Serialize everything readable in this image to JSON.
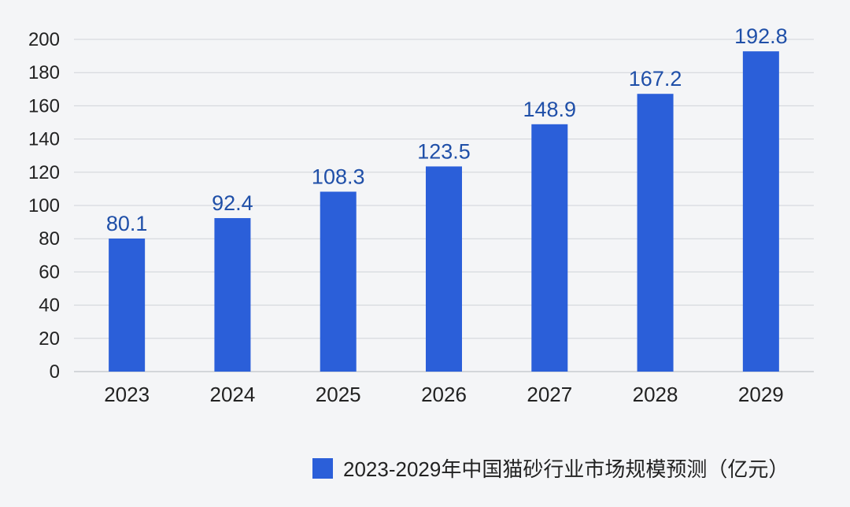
{
  "chart_data": {
    "type": "bar",
    "title": "",
    "xlabel": "",
    "ylabel": "",
    "categories": [
      "2023",
      "2024",
      "2025",
      "2026",
      "2027",
      "2028",
      "2029"
    ],
    "series": [
      {
        "name": "2023-2029年中国猫砂行业市场规模预测（亿元）",
        "values": [
          80.1,
          92.4,
          108.3,
          123.5,
          148.9,
          167.2,
          192.8
        ],
        "labels": [
          "80.1",
          "92.4",
          "108.3",
          "123.5",
          "148.9",
          "167.2",
          "192.8"
        ]
      }
    ],
    "ylim": [
      0,
      200
    ],
    "yticks": [
      0,
      20,
      40,
      60,
      80,
      100,
      120,
      140,
      160,
      180,
      200
    ],
    "grid": true,
    "legend_position": "bottom-right",
    "colors": {
      "bar": "#2b5fd9",
      "data_label": "#1f4fa8",
      "background": "#f4f5f7"
    }
  }
}
